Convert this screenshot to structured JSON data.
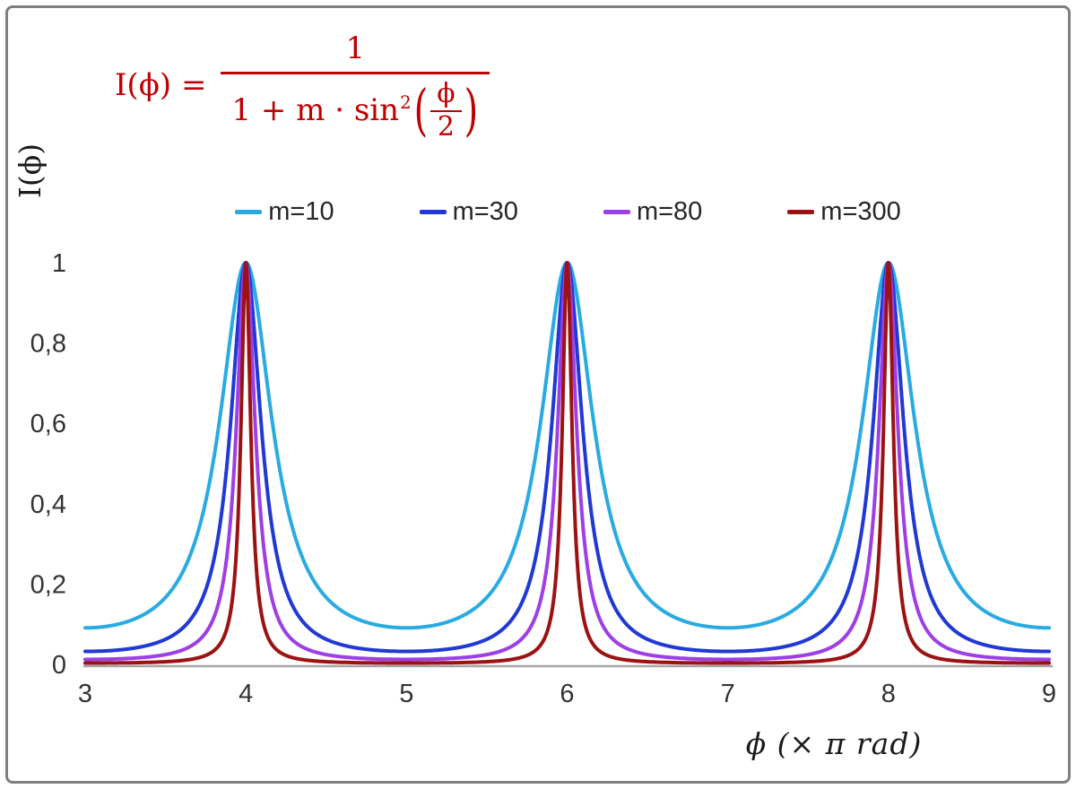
{
  "figure": {
    "y_axis_label": "I(ϕ)",
    "x_axis_label": "ϕ  (× π rad)",
    "formula": {
      "lhs": "I(ϕ) =",
      "numerator": "1",
      "denominator_text": "1 + m · sin",
      "exponent": "2",
      "open_paren": "(",
      "inner_numerator": "ϕ",
      "inner_denominator": "2"
    },
    "colors": {
      "formula": "#c00000",
      "frame": "#7f7f7f",
      "axis_line": "#a6a6a6",
      "tick_text": "#333333",
      "legend_text": "#262626",
      "axis_label_text": "#1a1a1a"
    }
  },
  "chart_data": {
    "type": "line",
    "title": "",
    "xlabel": "ϕ (× π rad)",
    "ylabel": "I(ϕ)",
    "formula": "I(phi) = 1 / (1 + m * sin^2(phi/2))",
    "x_unit": "pi rad",
    "xlim": [
      3,
      9
    ],
    "ylim": [
      0,
      1
    ],
    "x_ticks": [
      3,
      4,
      5,
      6,
      7,
      8,
      9
    ],
    "x_tick_labels": [
      "3",
      "4",
      "5",
      "6",
      "7",
      "8",
      "9"
    ],
    "y_ticks": [
      0,
      0.2,
      0.4,
      0.6,
      0.8,
      1
    ],
    "y_tick_labels": [
      "0",
      "0,2",
      "0,4",
      "0,6",
      "0,8",
      "1"
    ],
    "grid": false,
    "legend_position": "top-center",
    "peaks_at_x": [
      4,
      6,
      8
    ],
    "peak_value": 1,
    "samples_per_curve": 4000,
    "series": [
      {
        "name": "m=10",
        "m": 10,
        "color": "#29abe2",
        "min_value": 0.0909
      },
      {
        "name": "m=30",
        "m": 30,
        "color": "#2139d4",
        "min_value": 0.0323
      },
      {
        "name": "m=80",
        "m": 80,
        "color": "#9d3fe6",
        "min_value": 0.0123
      },
      {
        "name": "m=300",
        "m": 300,
        "color": "#9c1212",
        "min_value": 0.0033
      }
    ]
  }
}
